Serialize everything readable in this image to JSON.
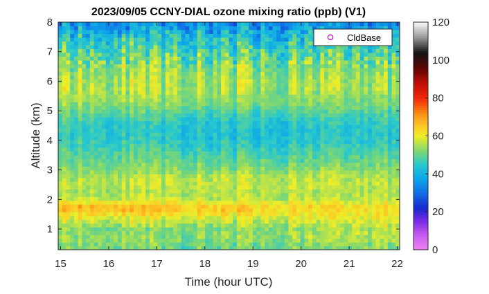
{
  "chart_data": {
    "type": "heatmap",
    "title": "2023/09/05 CCNY-DIAL ozone mixing ratio (ppb) (V1)",
    "xlabel": "Time (hour UTC)",
    "ylabel": "Altitude (km)",
    "xlim": [
      14.95,
      22.05
    ],
    "ylim": [
      0.3,
      8.0
    ],
    "x_ticks": [
      "15",
      "16",
      "17",
      "18",
      "19",
      "20",
      "21",
      "22"
    ],
    "y_ticks": [
      "1",
      "2",
      "3",
      "4",
      "5",
      "6",
      "7",
      "8"
    ],
    "x_tick_values": [
      15,
      16,
      17,
      18,
      19,
      20,
      21,
      22
    ],
    "y_tick_values": [
      1,
      2,
      3,
      4,
      5,
      6,
      7,
      8
    ],
    "colorbar": {
      "range": [
        0,
        120
      ],
      "ticks": [
        "0",
        "20",
        "40",
        "60",
        "80",
        "100",
        "120"
      ],
      "tick_values": [
        0,
        20,
        40,
        60,
        80,
        100,
        120
      ]
    },
    "legend": {
      "label": "CldBase",
      "position": "top-right",
      "marker": "circle",
      "color": "#cc00cc"
    },
    "grid": false,
    "altitude_profile_km": [
      0.4,
      0.6,
      0.8,
      1.0,
      1.2,
      1.4,
      1.6,
      1.7,
      1.8,
      1.9,
      2.0,
      2.2,
      2.4,
      2.6,
      2.8,
      3.0,
      3.2,
      3.4,
      3.6,
      3.8,
      4.0,
      4.2,
      4.4,
      4.6,
      4.8,
      5.0,
      5.2,
      5.4,
      5.6,
      5.8,
      6.0,
      6.2,
      6.4,
      6.6,
      6.8,
      7.0,
      7.2,
      7.4,
      7.6,
      7.8,
      8.0
    ],
    "series": [
      {
        "time_utc": 15.5,
        "ozone_ppb": [
          52,
          54,
          53,
          52,
          56,
          60,
          65,
          67,
          66,
          62,
          58,
          55,
          56,
          57,
          55,
          53,
          52,
          50,
          49,
          48,
          47,
          46,
          46,
          47,
          49,
          51,
          53,
          55,
          56,
          56,
          56,
          55,
          54,
          53,
          51,
          49,
          47,
          45,
          42,
          38,
          34
        ]
      },
      {
        "time_utc": 18.5,
        "ozone_ppb": [
          50,
          52,
          53,
          52,
          55,
          59,
          63,
          65,
          64,
          60,
          57,
          56,
          57,
          57,
          56,
          53,
          51,
          49,
          47,
          45,
          44,
          43,
          43,
          44,
          46,
          48,
          51,
          53,
          54,
          55,
          55,
          54,
          53,
          52,
          50,
          48,
          46,
          44,
          41,
          37,
          33
        ]
      },
      {
        "time_utc": 21.5,
        "ozone_ppb": [
          52,
          55,
          56,
          56,
          58,
          60,
          61,
          62,
          61,
          59,
          57,
          55,
          56,
          56,
          55,
          53,
          51,
          49,
          48,
          46,
          45,
          44,
          44,
          45,
          47,
          49,
          51,
          52,
          53,
          54,
          54,
          53,
          52,
          51,
          49,
          47,
          45,
          43,
          40,
          37,
          34
        ]
      }
    ]
  }
}
